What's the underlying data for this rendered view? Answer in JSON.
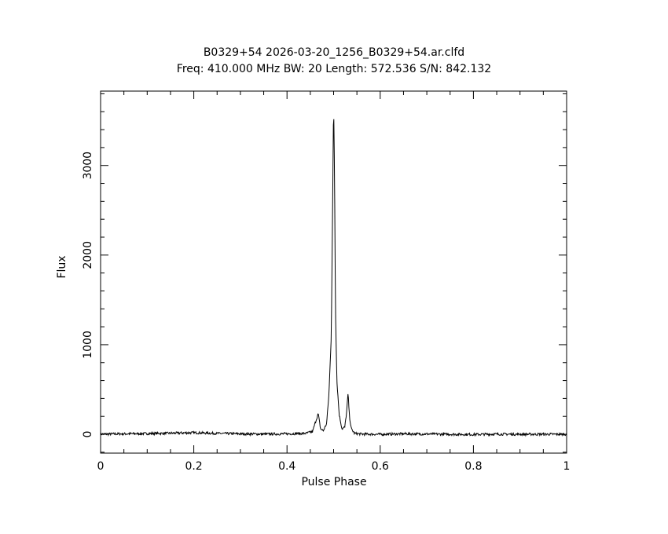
{
  "chart_data": {
    "type": "line",
    "title": "B0329+54 2026-03-20_1256_B0329+54.ar.clfd",
    "subtitle": "Freq: 410.000 MHz BW: 20 Length: 572.536 S/N: 842.132",
    "xlabel": "Pulse Phase",
    "ylabel": "Flux",
    "xlim": [
      0,
      1
    ],
    "ylim": [
      -210,
      3830
    ],
    "x_ticks": [
      0,
      0.2,
      0.4,
      0.6,
      0.8,
      1
    ],
    "x_tick_labels": [
      "0",
      "0.2",
      "0.4",
      "0.6",
      "0.8",
      "1"
    ],
    "y_ticks": [
      0,
      1000,
      2000,
      3000
    ],
    "y_tick_labels": [
      "0",
      "1000",
      "2000",
      "3000"
    ],
    "grid": false,
    "series": [
      {
        "x": [
          0,
          0.05,
          0.1,
          0.15,
          0.2,
          0.25,
          0.3,
          0.35,
          0.4,
          0.44,
          0.455,
          0.46,
          0.467,
          0.472,
          0.478,
          0.485,
          0.49,
          0.495,
          0.498,
          0.5,
          0.502,
          0.504,
          0.507,
          0.512,
          0.518,
          0.524,
          0.528,
          0.531,
          0.534,
          0.538,
          0.545,
          0.56,
          0.6,
          0.65,
          0.7,
          0.75,
          0.8,
          0.85,
          0.9,
          0.95,
          1
        ],
        "y": [
          2,
          5,
          8,
          12,
          18,
          10,
          5,
          2,
          5,
          10,
          30,
          120,
          230,
          60,
          40,
          120,
          450,
          1100,
          2600,
          3720,
          2900,
          1400,
          600,
          220,
          60,
          80,
          250,
          460,
          200,
          60,
          10,
          2,
          0,
          5,
          3,
          0,
          -2,
          2,
          0,
          1,
          0
        ]
      }
    ]
  }
}
